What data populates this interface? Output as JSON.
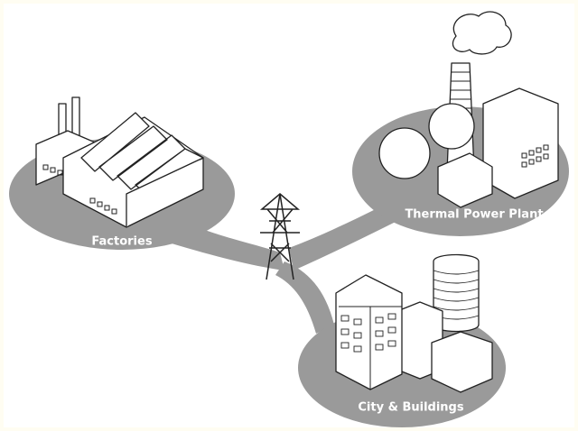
{
  "nodes": [
    {
      "label": "Factories"
    },
    {
      "label": "Thermal Power Plant"
    },
    {
      "label": "City & Buildings"
    }
  ]
}
